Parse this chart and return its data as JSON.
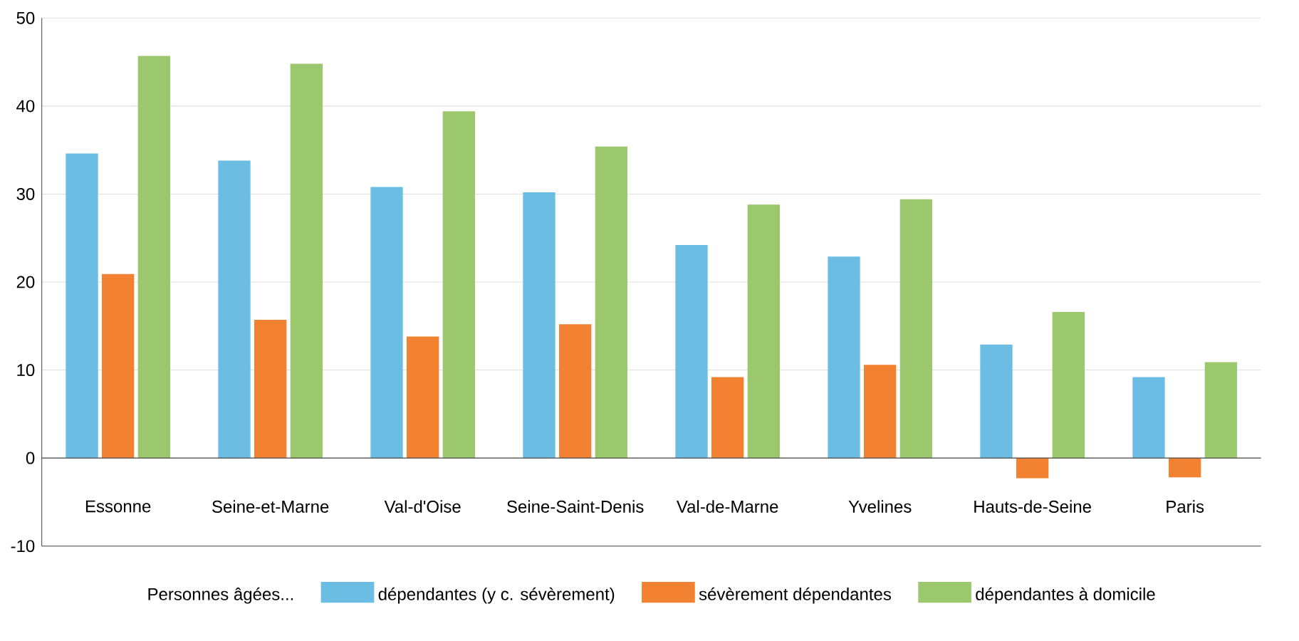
{
  "chart_data": {
    "type": "bar",
    "categories": [
      "Essonne",
      "Seine-et-Marne",
      "Val-d'Oise",
      "Seine-Saint-Denis",
      "Val-de-Marne",
      "Yvelines",
      "Hauts-de-Seine",
      "Paris"
    ],
    "series": [
      {
        "name": "dépendantes (y c. sévèrement)",
        "color": "#6bbde3",
        "values": [
          34.6,
          33.8,
          30.8,
          30.2,
          24.2,
          22.9,
          12.9,
          9.2
        ]
      },
      {
        "name": "sévèrement dépendantes",
        "color": "#f28131",
        "values": [
          20.9,
          15.7,
          13.8,
          15.2,
          9.2,
          10.6,
          -2.3,
          -2.2
        ]
      },
      {
        "name": "dépendantes à domicile",
        "color": "#9bc76d",
        "values": [
          45.7,
          44.8,
          39.4,
          35.4,
          28.8,
          29.4,
          16.6,
          10.9
        ]
      }
    ],
    "legend_title": "Personnes âgées...",
    "legend": "bottom",
    "grid": "y",
    "ylim": [
      -10,
      50
    ],
    "yticks": [
      -10,
      0,
      10,
      20,
      30,
      40,
      50
    ]
  }
}
